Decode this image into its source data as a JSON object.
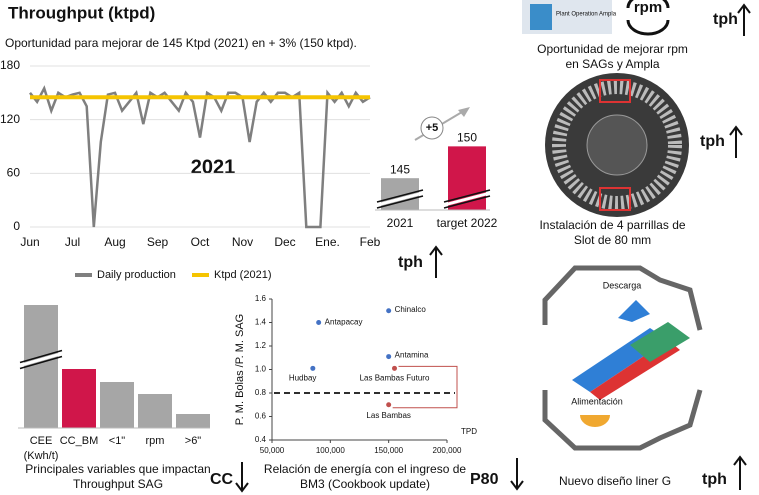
{
  "chart_data": [
    {
      "type": "line",
      "title": "Throughput (ktpd)",
      "subtitle": "Oportunidad para mejorar de 145 Ktpd (2021) en + 3% (150 ktpd).",
      "annotation": "2021",
      "categories": [
        "Jun",
        null,
        null,
        null,
        null,
        null,
        "Jul",
        null,
        null,
        null,
        null,
        null,
        "Aug",
        null,
        null,
        null,
        null,
        null,
        "Sep",
        null,
        null,
        null,
        null,
        null,
        "Oct",
        null,
        null,
        null,
        null,
        null,
        "Nov",
        null,
        null,
        null,
        null,
        null,
        "Dec",
        null,
        null,
        null,
        null,
        null,
        "Ene.",
        null,
        null,
        null,
        null,
        null,
        "Feb"
      ],
      "series": [
        {
          "name": "Daily production",
          "color": "#7f7f7f",
          "values": [
            150,
            140,
            155,
            130,
            150,
            145,
            148,
            150,
            135,
            0,
            95,
            148,
            150,
            130,
            140,
            150,
            115,
            150,
            145,
            150,
            140,
            130,
            150,
            140,
            100,
            150,
            145,
            130,
            150,
            150,
            145,
            95,
            140,
            150,
            140,
            150,
            150,
            145,
            150,
            0,
            0,
            0,
            150,
            140,
            150,
            135,
            150,
            140,
            145
          ]
        }
      ],
      "reference_lines": [
        {
          "name": "Ktpd (2021)",
          "color": "#f5c400",
          "value": 145
        }
      ],
      "ylim": [
        0,
        180
      ],
      "yticks": [
        0,
        60,
        120,
        180
      ],
      "grid": true
    },
    {
      "type": "bar",
      "categories": [
        "2021",
        "target 2022"
      ],
      "values": [
        145,
        150
      ],
      "colors": [
        "#a6a6a6",
        "#d0164a"
      ],
      "ylim": [
        140,
        151
      ],
      "axis_break": true,
      "annotation": "+5"
    },
    {
      "type": "bar",
      "categories": [
        "CEE (Kwh/t)",
        "CC_BM",
        "<1\"",
        "rpm",
        ">6\""
      ],
      "values": [
        123,
        59,
        46,
        34,
        14
      ],
      "colors": [
        "#a6a6a6",
        "#d0164a",
        "#a6a6a6",
        "#a6a6a6",
        "#a6a6a6"
      ],
      "ylim": [
        0,
        125
      ],
      "axis_break": true,
      "caption": "Principales variables que impactan Throughput SAG"
    },
    {
      "type": "scatter",
      "y_label": "P. M. Bolas /P. M. SAG",
      "x_label": "TPD",
      "caption": "Relación de energía  con el ingreso de BM3 (Cookbook update)",
      "points": [
        {
          "label": "Chinalco",
          "x": 150000,
          "y": 1.5,
          "color": "#4472c4"
        },
        {
          "label": "Antapacay",
          "x": 90000,
          "y": 1.4,
          "color": "#4472c4"
        },
        {
          "label": "Antamina",
          "x": 150000,
          "y": 1.11,
          "color": "#4472c4"
        },
        {
          "label": "Hudbay",
          "x": 85000,
          "y": 1.01,
          "color": "#4472c4"
        },
        {
          "label": "Las Bambas Futuro",
          "x": 155000,
          "y": 1.01,
          "color": "#c0504d"
        },
        {
          "label": "Las Bambas",
          "x": 150000,
          "y": 0.7,
          "color": "#c0504d"
        }
      ],
      "reference_lines": [
        {
          "value": 0.8
        }
      ],
      "xlim": [
        50000,
        200000
      ],
      "xticks": [
        {
          "value": 50000,
          "label": "50,000"
        },
        {
          "value": 100000,
          "label": "100,000"
        },
        {
          "value": 150000,
          "label": "150,000"
        },
        {
          "value": 200000,
          "label": "200,000"
        }
      ],
      "ylim": [
        0.4,
        1.6
      ],
      "yticks": [
        0.4,
        0.6,
        0.8,
        {
          "value": 1,
          "label": "1.0"
        },
        1.2,
        1.4,
        1.6
      ]
    }
  ],
  "panels": {
    "rpm_caption": "Oportunidad de mejorar rpm en SAGs y Ampla",
    "rpm_icon": "rpm",
    "logo": "Plant Operation Ampla",
    "grate_caption": "Instalación de 4 parrillas de Slot de 80 mm",
    "liner_caption": "Nuevo diseño liner G",
    "discharge": "Descarga",
    "feed": "Alimentación"
  },
  "indicators": {
    "tph_1": "tph",
    "tph_2": "tph",
    "tph_3": "tph",
    "tph_4": "tph",
    "cc": "CC",
    "p80": "P80"
  }
}
